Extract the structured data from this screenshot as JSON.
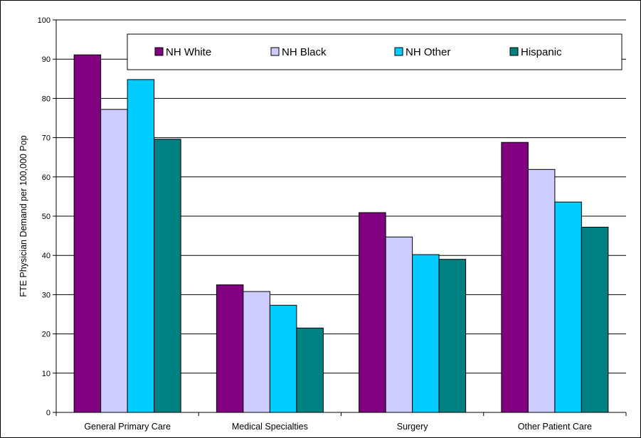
{
  "chart_data": {
    "type": "bar",
    "categories": [
      "General Primary Care",
      "Medical Specialties",
      "Surgery",
      "Other Patient Care"
    ],
    "series": [
      {
        "name": "NH White",
        "color": "#800080",
        "values": [
          91.1,
          32.5,
          50.9,
          68.8
        ]
      },
      {
        "name": "NH Black",
        "color": "#CCCCFF",
        "values": [
          77.2,
          30.8,
          44.7,
          61.9
        ]
      },
      {
        "name": "NH Other",
        "color": "#00CCFF",
        "values": [
          84.8,
          27.3,
          40.2,
          53.6
        ]
      },
      {
        "name": "Hispanic",
        "color": "#008080",
        "values": [
          69.6,
          21.5,
          39.0,
          47.2
        ]
      }
    ],
    "ylabel": "FTE Physician Demand per 100,000 Pop",
    "ylim": [
      0,
      100
    ],
    "yticks": [
      0,
      10,
      20,
      30,
      40,
      50,
      60,
      70,
      80,
      90,
      100
    ],
    "grid": true,
    "legend": "top"
  }
}
